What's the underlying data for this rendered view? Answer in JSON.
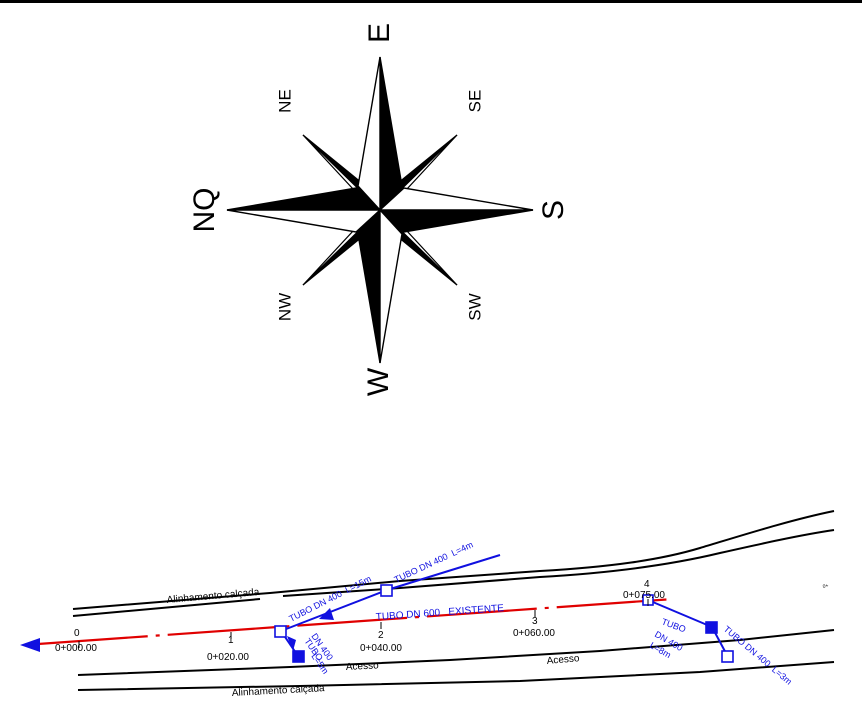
{
  "colors": {
    "background": "#ffffff",
    "linework": "#000000",
    "existing_pipe": "#e00000",
    "new_pipe": "#1010e0"
  },
  "compass": {
    "label_top": "E",
    "label_bottom": "W",
    "label_left": "NQ",
    "label_right": "S",
    "label_upper_left": "NE",
    "label_upper_right": "SE",
    "label_lower_left": "NW",
    "label_lower_right": "SW"
  },
  "plan": {
    "sidewalk_top_label": "Alinhamento calçada",
    "sidewalk_bottom_label": "Alinhamento calçada",
    "access_label_1": "Acesso",
    "access_label_2": "Acesso",
    "existing_pipe_label": "TUBO DN 600   EXISTENTE",
    "pipe_labels": {
      "p1": "TUBO DN 400  L=15m",
      "p2": "TUBO DN 400  L=4m",
      "p3_line1": "TUBO",
      "p3_line2": "DN 400",
      "p3_line3": "L=5m",
      "p4_line1": "TUBO",
      "p4_line2": "DN 400",
      "p4_line3": "L=8m",
      "p5": "TUBO DN 400  L=3m"
    },
    "stations": [
      {
        "number": "0",
        "chainage": "0+000.00"
      },
      {
        "number": "1",
        "chainage": "0+020.00"
      },
      {
        "number": "2",
        "chainage": "0+040.00"
      },
      {
        "number": "3",
        "chainage": "0+060.00"
      },
      {
        "number": "4",
        "chainage": "0+075.00"
      }
    ],
    "edge_mark": "0+"
  }
}
